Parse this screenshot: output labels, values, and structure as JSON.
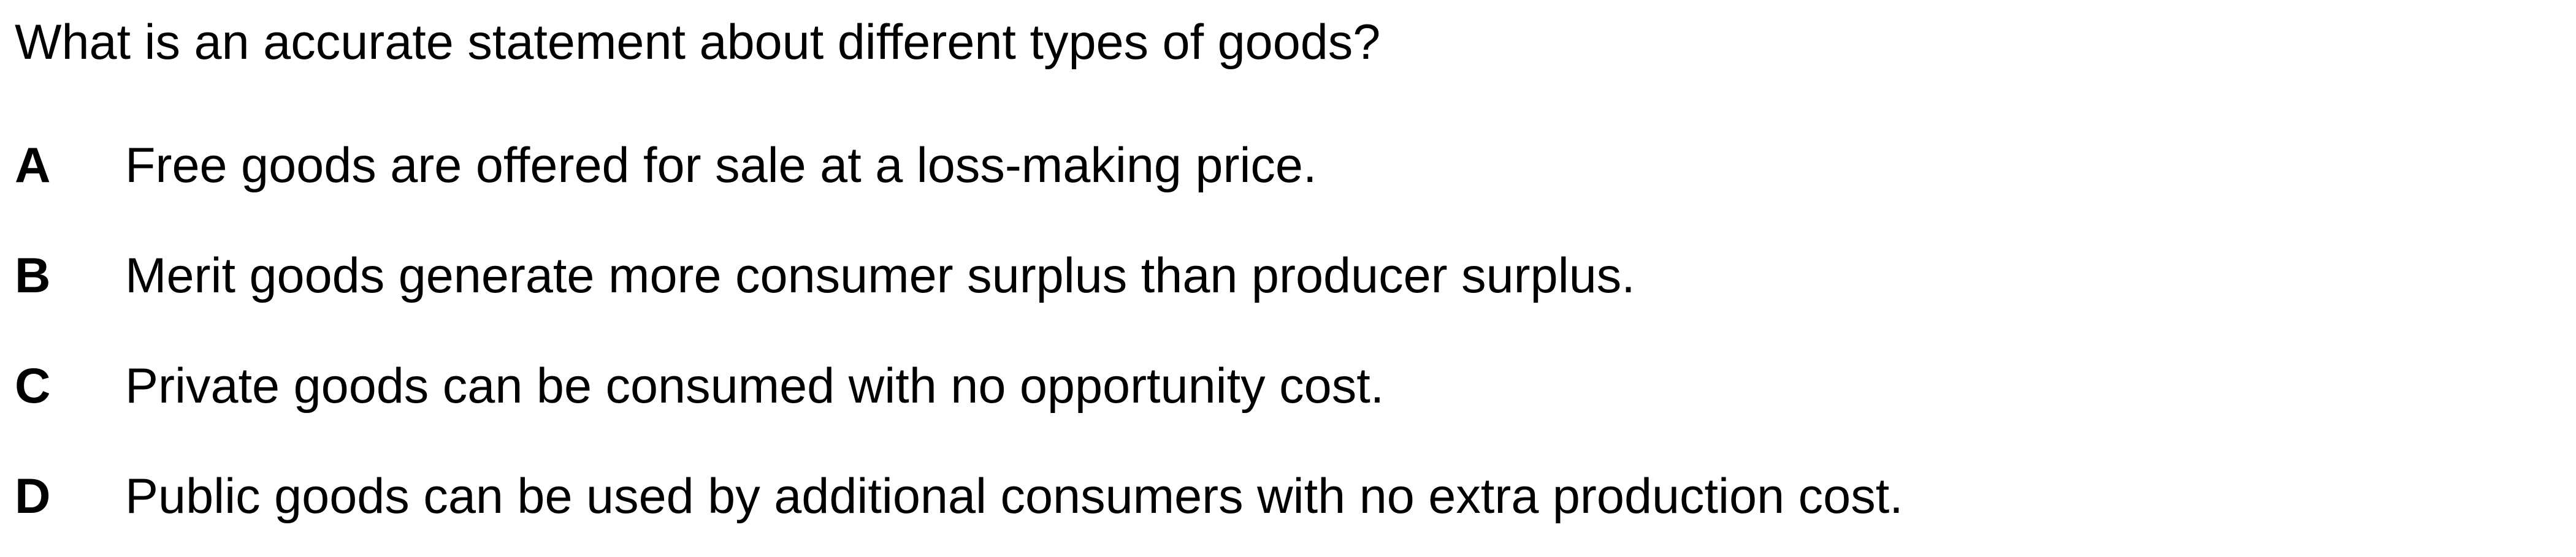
{
  "question": {
    "text": "What is an accurate statement about different types of goods?"
  },
  "options": [
    {
      "letter": "A",
      "text": "Free goods are offered for sale at a loss-making price."
    },
    {
      "letter": "B",
      "text": "Merit goods generate more consumer surplus than producer surplus."
    },
    {
      "letter": "C",
      "text": "Private goods can be consumed with no opportunity cost."
    },
    {
      "letter": "D",
      "text": "Public goods can be used by additional consumers with no extra production cost."
    }
  ]
}
